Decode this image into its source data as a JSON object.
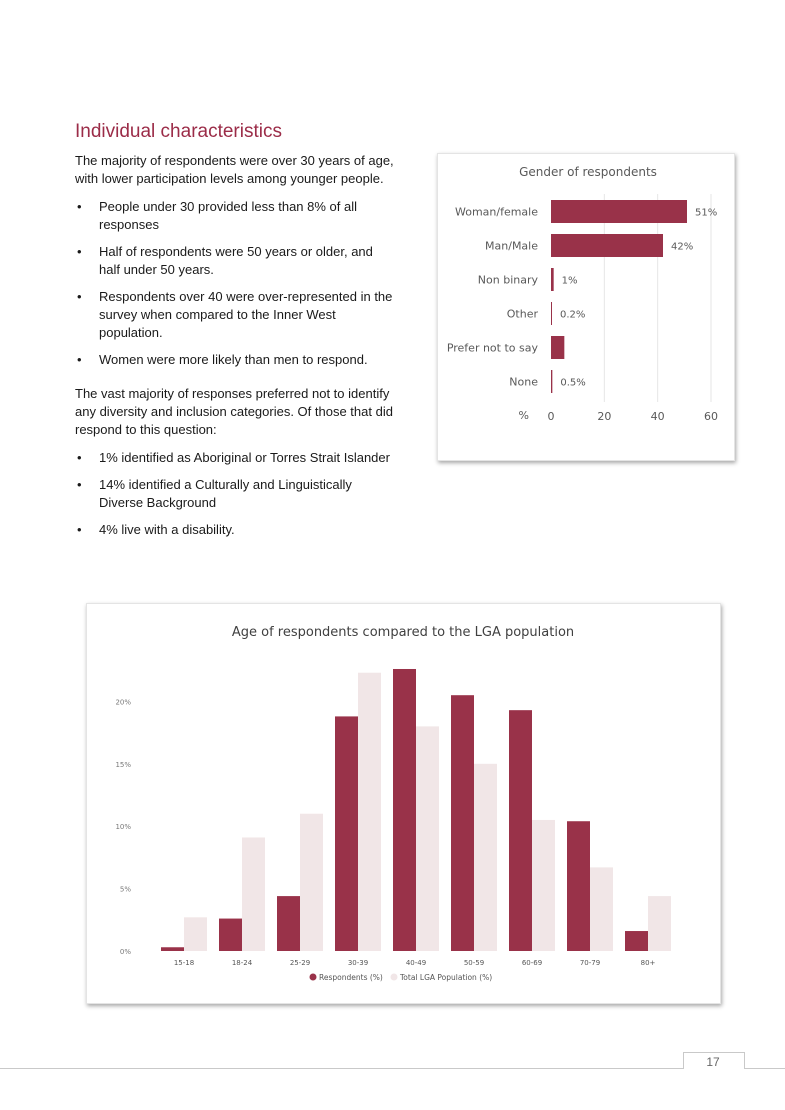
{
  "heading": "Individual characteristics",
  "intro": "The majority of respondents were over 30 years of age, with lower participation levels among younger people.",
  "bullets_1": [
    "People under 30 provided less than 8% of all responses",
    "Half of respondents were 50 years or older, and half under 50 years.",
    "Respondents over 40 were over-represented in the survey when compared to the Inner West population.",
    "Women were more likely than men to respond."
  ],
  "para_2": "The vast majority of responses preferred not to identify any diversity and inclusion categories. Of those that did respond to this question:",
  "bullets_2": [
    "1% identified as Aboriginal or Torres Strait Islander",
    "14% identified a Culturally and Linguistically Diverse Background",
    "4% live with a disability."
  ],
  "page_number": "17",
  "colors": {
    "accent": "#9b2c48",
    "bar": "#993249",
    "light_bar": "#f1e6e7"
  },
  "chart_data": [
    {
      "type": "bar",
      "orientation": "horizontal",
      "title": "Gender of respondents",
      "xlabel": "%",
      "categories": [
        "Woman/female",
        "Man/Male",
        "Non binary",
        "Other",
        "Prefer not to say",
        "None"
      ],
      "values": [
        51,
        42,
        1,
        0.2,
        5,
        0.5
      ],
      "data_labels": [
        "51%",
        "42%",
        "1%",
        "0.2%",
        "",
        "0.5%"
      ],
      "xlim": [
        0,
        60
      ],
      "xticks": [
        "0",
        "20",
        "40",
        "60"
      ],
      "grid": true
    },
    {
      "type": "bar",
      "title": "Age of respondents compared to the LGA population",
      "categories": [
        "15-18",
        "18-24",
        "25-29",
        "30-39",
        "40-49",
        "50-59",
        "60-69",
        "70-79",
        "80+"
      ],
      "series": [
        {
          "name": "Respondents (%)",
          "values": [
            0.3,
            2.6,
            4.4,
            18.8,
            22.6,
            20.5,
            19.3,
            10.4,
            1.6
          ]
        },
        {
          "name": "Total LGA Population (%)",
          "values": [
            2.7,
            9.1,
            11.0,
            22.3,
            18.0,
            15.0,
            10.5,
            6.7,
            4.4
          ]
        }
      ],
      "ylim": [
        0,
        23
      ],
      "yticks": [
        "0%",
        "5%",
        "10%",
        "15%",
        "20%"
      ],
      "legend": "bottom",
      "grid": false
    }
  ]
}
